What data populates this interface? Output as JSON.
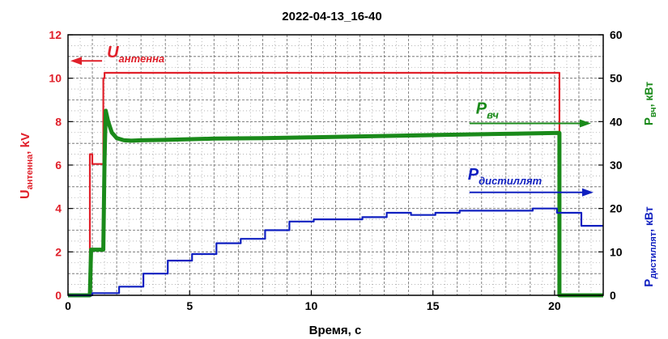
{
  "chart_data": {
    "type": "line",
    "title": "2022-04-13_16-40",
    "xlabel": "Время, с",
    "xlim": [
      0,
      22
    ],
    "x_ticks": [
      0,
      5,
      10,
      15,
      20
    ],
    "y_left": {
      "label": "Uантенна, kV",
      "label_main": "U",
      "label_sub": "антенна",
      "label_suffix": ", kV",
      "lim": [
        0,
        12
      ],
      "ticks": [
        0,
        2,
        4,
        6,
        8,
        10,
        12
      ],
      "color": "#e0202a"
    },
    "y_right": {
      "lim": [
        0,
        60
      ],
      "ticks": [
        0,
        10,
        20,
        30,
        40,
        50,
        60
      ],
      "label1": "Pвч, кВт",
      "label1_main": "P",
      "label1_sub": "вч",
      "label1_suffix": ", кВт",
      "label1_color": "#1a8a1a",
      "label2": "Pдистиллят, кВт",
      "label2_main": "P",
      "label2_sub": "дистиллят",
      "label2_suffix": ", кВт",
      "label2_color": "#1020c0"
    },
    "grid": true,
    "series": [
      {
        "name": "Uантенна",
        "axis": "left",
        "color": "#e0202a",
        "x": [
          0,
          0.9,
          0.9,
          1.0,
          1.0,
          1.45,
          1.45,
          1.5,
          1.5,
          20.2,
          20.2,
          22
        ],
        "y": [
          0,
          0,
          6.5,
          6.5,
          6.05,
          6.05,
          10.0,
          10.0,
          10.25,
          10.25,
          0,
          0
        ]
      },
      {
        "name": "Pвч",
        "axis": "right",
        "color": "#1a8a1a",
        "x": [
          0,
          0.9,
          0.95,
          1.0,
          1.45,
          1.5,
          1.55,
          1.65,
          1.8,
          2.0,
          2.3,
          2.6,
          3.0,
          4,
          6,
          8,
          10,
          12,
          14,
          16,
          18,
          20.2,
          20.2,
          22
        ],
        "y": [
          0,
          0,
          10.5,
          10.5,
          10.5,
          31,
          42.5,
          40,
          37.5,
          36.2,
          35.7,
          35.6,
          35.7,
          35.8,
          36.1,
          36.2,
          36.4,
          36.6,
          36.8,
          37.0,
          37.2,
          37.4,
          0,
          0
        ]
      },
      {
        "name": "Pдистиллят",
        "axis": "right",
        "color": "#1020c0",
        "x": [
          0,
          1.0,
          1.0,
          2.1,
          2.1,
          3.1,
          3.1,
          4.1,
          4.1,
          5.1,
          5.1,
          6.1,
          6.1,
          7.1,
          7.1,
          8.1,
          8.1,
          9.1,
          9.1,
          10.1,
          10.1,
          11.1,
          11.1,
          12.1,
          12.1,
          13.1,
          13.1,
          14.1,
          14.1,
          15.1,
          15.1,
          16.1,
          16.1,
          17.1,
          17.1,
          18.1,
          18.1,
          19.1,
          19.1,
          20.1,
          20.1,
          21.1,
          21.1,
          22
        ],
        "y": [
          0,
          0,
          0.5,
          0.5,
          2,
          2,
          5,
          5,
          8,
          8,
          9.5,
          9.5,
          12,
          12,
          13,
          13,
          15,
          15,
          17,
          17,
          17.5,
          17.5,
          17.5,
          17.5,
          18,
          18,
          19,
          19,
          18.5,
          18.5,
          19,
          19,
          19.5,
          19.5,
          19.5,
          19.5,
          19.5,
          19.5,
          20,
          20,
          19,
          19,
          16,
          16
        ]
      }
    ],
    "annotations": [
      {
        "id": "u",
        "main": "U",
        "sub": "антенна",
        "color": "#e0202a",
        "arrow": "left",
        "arrow_x": [
          1.4,
          0.1
        ],
        "arrow_y_left": 10.8
      },
      {
        "id": "pvch",
        "main": "P",
        "sub": "вч",
        "color": "#1a8a1a",
        "arrow": "right",
        "arrow_x": [
          16.5,
          21.5
        ],
        "arrow_y_right": 39.6
      },
      {
        "id": "pdist",
        "main": "P",
        "sub": "дистиллят",
        "color": "#1020c0",
        "arrow": "right",
        "arrow_x": [
          16.5,
          21.6
        ],
        "arrow_y_right": 23.7
      }
    ]
  }
}
